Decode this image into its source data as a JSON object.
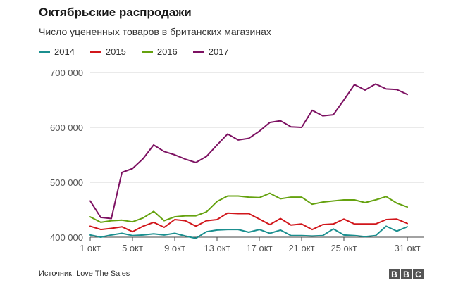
{
  "header": {
    "title": "Октябрьские распродажи",
    "subtitle": "Число уцененных товаров в британских магазинах"
  },
  "footer": {
    "source": "Источник: Love The Sales",
    "logo_letters": [
      "B",
      "B",
      "C"
    ]
  },
  "chart_data": {
    "type": "line",
    "title": "Октябрьские распродажи",
    "subtitle": "Число уцененных товаров в британских магазинах",
    "xlabel": "",
    "ylabel": "",
    "x": [
      1,
      2,
      3,
      4,
      5,
      6,
      7,
      8,
      9,
      10,
      11,
      12,
      13,
      14,
      15,
      16,
      17,
      18,
      19,
      20,
      21,
      22,
      23,
      24,
      25,
      26,
      27,
      28,
      29,
      30,
      31
    ],
    "xtick_values": [
      1,
      5,
      9,
      13,
      17,
      21,
      25,
      31
    ],
    "xtick_labels": [
      "1 окт",
      "5 окт",
      "9 окт",
      "13 окт",
      "17 окт",
      "21 окт",
      "25 окт",
      "31 окт"
    ],
    "ylim": [
      400000,
      700000
    ],
    "ytick_values": [
      400000,
      500000,
      600000,
      700000
    ],
    "ytick_labels": [
      "400 000",
      "500 000",
      "600 000",
      "700 000"
    ],
    "grid": "horizontal",
    "legend_position": "top-left",
    "series": [
      {
        "name": "2014",
        "color": "#1b8f8f",
        "values": [
          404000,
          400000,
          404000,
          407000,
          403000,
          404000,
          406000,
          404000,
          407000,
          402000,
          398000,
          410000,
          413000,
          414000,
          414000,
          409000,
          414000,
          407000,
          413000,
          403000,
          403000,
          402000,
          403000,
          415000,
          404000,
          403000,
          401000,
          403000,
          420000,
          411000,
          419000
        ]
      },
      {
        "name": "2015",
        "color": "#d1161b",
        "values": [
          420000,
          414000,
          416000,
          419000,
          410000,
          420000,
          427000,
          418000,
          432000,
          430000,
          420000,
          430000,
          432000,
          444000,
          443000,
          443000,
          433000,
          423000,
          434000,
          422000,
          424000,
          414000,
          423000,
          424000,
          433000,
          424000,
          424000,
          424000,
          432000,
          433000,
          425000
        ]
      },
      {
        "name": "2016",
        "color": "#65a20f",
        "values": [
          437000,
          427000,
          430000,
          431000,
          428000,
          435000,
          447000,
          430000,
          437000,
          439000,
          439000,
          446000,
          465000,
          475000,
          475000,
          473000,
          472000,
          480000,
          470000,
          473000,
          473000,
          460000,
          464000,
          466000,
          468000,
          468000,
          463000,
          468000,
          474000,
          462000,
          455000
        ]
      },
      {
        "name": "2017",
        "color": "#7d1162",
        "values": [
          466000,
          436000,
          434000,
          518000,
          525000,
          543000,
          568000,
          556000,
          550000,
          542000,
          536000,
          547000,
          568000,
          588000,
          577000,
          580000,
          593000,
          609000,
          612000,
          601000,
          600000,
          631000,
          621000,
          623000,
          650000,
          678000,
          668000,
          679000,
          670000,
          669000,
          660000
        ]
      }
    ]
  }
}
